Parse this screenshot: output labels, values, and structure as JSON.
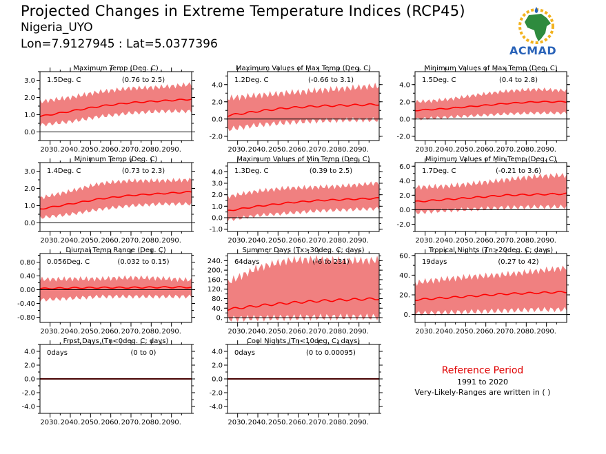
{
  "header": {
    "title": "Projected Changes in Extreme Temperature Indices (RCP45)",
    "region": "Nigeria_UYO",
    "coords": "Lon=7.9127945 : Lat=5.0377396"
  },
  "logo": {
    "text": "ACMAD"
  },
  "reference": {
    "title": "Reference Period",
    "years": "1991 to 2020",
    "note": "Very-Likely-Ranges are written in ( )"
  },
  "colors": {
    "band": "#f08080",
    "line": "#ff0000",
    "zero": "#000000"
  },
  "chart_data": [
    {
      "type": "area",
      "title": "Maximum Temp (Deg. C)",
      "value": "1.5Deg. C",
      "range": "(0.76 to 2.5)",
      "ylim": [
        -0.5,
        3.5
      ],
      "yticks": [
        "0.0",
        "1.0",
        "2.0",
        "3.0"
      ],
      "ytick_values": [
        0,
        1,
        2,
        3
      ],
      "xticks": [
        "2030.",
        "2040.",
        "2050.",
        "2060.",
        "2070.",
        "2080.",
        "2090."
      ],
      "x": [
        2025,
        2040,
        2055,
        2070,
        2085,
        2100
      ],
      "mean": [
        0.9,
        1.2,
        1.5,
        1.7,
        1.8,
        1.9
      ],
      "low": [
        0.4,
        0.6,
        0.9,
        1.1,
        1.2,
        1.2
      ],
      "high": [
        1.7,
        1.9,
        2.3,
        2.6,
        2.7,
        2.8
      ]
    },
    {
      "type": "area",
      "title": "Maximum Values of Max Temp (Deg. C)",
      "value": "1.2Deg. C",
      "range": "(-0.66 to 3.1)",
      "ylim": [
        -2.5,
        5.5
      ],
      "yticks": [
        "-2.0",
        "0.0",
        "2.0",
        "4.0"
      ],
      "ytick_values": [
        -2,
        0,
        2,
        4
      ],
      "xticks": [
        "2030.",
        "2040.",
        "2050.",
        "2060.",
        "2070.",
        "2080.",
        "2090."
      ],
      "x": [
        2025,
        2040,
        2055,
        2070,
        2085,
        2100
      ],
      "mean": [
        0.4,
        0.9,
        1.3,
        1.5,
        1.6,
        1.7
      ],
      "low": [
        -1.2,
        -0.7,
        -0.4,
        -0.2,
        -0.1,
        -0.1
      ],
      "high": [
        2.2,
        2.8,
        3.3,
        3.5,
        3.5,
        3.6
      ]
    },
    {
      "type": "area",
      "title": "Minimum Values of Max Temp (Deg. C)",
      "value": "1.5Deg. C",
      "range": "(0.4 to 2.8)",
      "ylim": [
        -2.5,
        5.5
      ],
      "yticks": [
        "-2.0",
        "0.0",
        "2.0",
        "4.0"
      ],
      "ytick_values": [
        -2,
        0,
        2,
        4
      ],
      "xticks": [
        "2030.",
        "2040.",
        "2050.",
        "2060.",
        "2070.",
        "2080.",
        "2090."
      ],
      "x": [
        2025,
        2040,
        2055,
        2070,
        2085,
        2100
      ],
      "mean": [
        1.0,
        1.2,
        1.5,
        1.8,
        2.0,
        2.0
      ],
      "low": [
        0.0,
        0.2,
        0.4,
        0.6,
        0.7,
        0.7
      ],
      "high": [
        2.1,
        2.4,
        2.8,
        3.1,
        3.3,
        3.3
      ]
    },
    {
      "type": "area",
      "title": "Minimum Temp (Deg. C)",
      "value": "1.4Deg. C",
      "range": "(0.73 to 2.3)",
      "ylim": [
        -0.5,
        3.5
      ],
      "yticks": [
        "0.0",
        "1.0",
        "2.0",
        "3.0"
      ],
      "ytick_values": [
        0,
        1,
        2,
        3
      ],
      "xticks": [
        "2030.",
        "2040.",
        "2050.",
        "2060.",
        "2070.",
        "2080.",
        "2090."
      ],
      "x": [
        2025,
        2040,
        2055,
        2070,
        2085,
        2100
      ],
      "mean": [
        0.8,
        1.1,
        1.4,
        1.6,
        1.7,
        1.8
      ],
      "low": [
        0.3,
        0.5,
        0.8,
        1.0,
        1.1,
        1.1
      ],
      "high": [
        1.5,
        1.8,
        2.2,
        2.4,
        2.5,
        2.6
      ]
    },
    {
      "type": "area",
      "title": "Maximum Values of Min Temp (Deg. C)",
      "value": "1.3Deg. C",
      "range": "(0.39 to 2.5)",
      "ylim": [
        -1.2,
        4.8
      ],
      "yticks": [
        "-1.0",
        "0.0",
        "1.0",
        "2.0",
        "3.0",
        "4.0"
      ],
      "ytick_values": [
        -1,
        0,
        1,
        2,
        3,
        4
      ],
      "xticks": [
        "2030.",
        "2040.",
        "2050.",
        "2060.",
        "2070.",
        "2080.",
        "2090."
      ],
      "x": [
        2025,
        2040,
        2055,
        2070,
        2085,
        2100
      ],
      "mean": [
        0.6,
        1.0,
        1.3,
        1.5,
        1.6,
        1.7
      ],
      "low": [
        -0.2,
        0.2,
        0.4,
        0.6,
        0.7,
        0.8
      ],
      "high": [
        1.7,
        2.2,
        2.6,
        2.8,
        2.9,
        3.0
      ]
    },
    {
      "type": "area",
      "title": "Minimum Values of Min Temp (Deg. C)",
      "value": "1.7Deg. C",
      "range": "(-0.21 to 3.6)",
      "ylim": [
        -3.0,
        6.5
      ],
      "yticks": [
        "-2.0",
        "0.0",
        "2.0",
        "4.0",
        "6.0"
      ],
      "ytick_values": [
        -2,
        0,
        2,
        4,
        6
      ],
      "xticks": [
        "2030.",
        "2040.",
        "2050.",
        "2060.",
        "2070.",
        "2080.",
        "2090."
      ],
      "x": [
        2025,
        2040,
        2055,
        2070,
        2085,
        2100
      ],
      "mean": [
        1.1,
        1.4,
        1.7,
        2.0,
        2.1,
        2.2
      ],
      "low": [
        -0.4,
        -0.1,
        0.1,
        0.3,
        0.4,
        0.4
      ],
      "high": [
        3.0,
        3.4,
        3.9,
        4.2,
        4.4,
        4.5
      ]
    },
    {
      "type": "area",
      "title": "Diurnal Temp Range (Deg. C)",
      "value": "0.056Deg. C",
      "range": "(0.032 to 0.15)",
      "ylim": [
        -0.95,
        1.05
      ],
      "yticks": [
        "-0.80",
        "-0.40",
        "0.00",
        "0.40",
        "0.80"
      ],
      "ytick_values": [
        -0.8,
        -0.4,
        0,
        0.4,
        0.8
      ],
      "xticks": [
        "2030.",
        "2040.",
        "2050.",
        "2060.",
        "2070.",
        "2080.",
        "2090."
      ],
      "x": [
        2025,
        2040,
        2055,
        2070,
        2085,
        2100
      ],
      "mean": [
        0.03,
        0.05,
        0.06,
        0.06,
        0.07,
        0.07
      ],
      "low": [
        -0.3,
        -0.25,
        -0.2,
        -0.2,
        -0.2,
        -0.2
      ],
      "high": [
        0.35,
        0.35,
        0.3,
        0.3,
        0.3,
        0.3
      ]
    },
    {
      "type": "area",
      "title": "Summer Days (Tx>30deg. C; days)",
      "value": "64days",
      "range": "(-6 to 231)",
      "ylim": [
        -20,
        270
      ],
      "yticks": [
        "0.",
        "40.",
        "80.",
        "120.",
        "160.",
        "200.",
        "240."
      ],
      "ytick_values": [
        0,
        40,
        80,
        120,
        160,
        200,
        240
      ],
      "xticks": [
        "2030.",
        "2040.",
        "2050.",
        "2060.",
        "2070.",
        "2080.",
        "2090."
      ],
      "x": [
        2025,
        2040,
        2055,
        2070,
        2085,
        2100
      ],
      "mean": [
        35,
        50,
        62,
        70,
        76,
        80
      ],
      "low": [
        -5,
        -2,
        0,
        2,
        3,
        3
      ],
      "high": [
        150,
        200,
        230,
        245,
        250,
        252
      ]
    },
    {
      "type": "area",
      "title": "Tropical Nights (Tn>20deg. C; days)",
      "value": "19days",
      "range": "(0.27 to 42)",
      "ylim": [
        -8,
        62
      ],
      "yticks": [
        "0.",
        "20.",
        "40.",
        "60."
      ],
      "ytick_values": [
        0,
        20,
        40,
        60
      ],
      "xticks": [
        "2030.",
        "2040.",
        "2050.",
        "2060.",
        "2070.",
        "2080.",
        "2090."
      ],
      "x": [
        2025,
        2040,
        2055,
        2070,
        2085,
        2100
      ],
      "mean": [
        15,
        17,
        19,
        21,
        22,
        23
      ],
      "low": [
        1,
        2,
        3,
        4,
        5,
        5
      ],
      "high": [
        30,
        35,
        40,
        43,
        45,
        46
      ]
    },
    {
      "type": "area",
      "title": "Frost Days (Tn<0deg. C; days)",
      "value": "0days",
      "range": "(0 to 0)",
      "ylim": [
        -5,
        5
      ],
      "yticks": [
        "-4.0",
        "-2.0",
        "0.0",
        "2.0",
        "4.0"
      ],
      "ytick_values": [
        -4,
        -2,
        0,
        2,
        4
      ],
      "xticks": [
        "2030.",
        "2040.",
        "2050.",
        "2060.",
        "2070.",
        "2080.",
        "2090."
      ],
      "x": [
        2025,
        2100
      ],
      "mean": [
        0,
        0
      ],
      "low": [
        0,
        0
      ],
      "high": [
        0,
        0
      ]
    },
    {
      "type": "area",
      "title": "Cool Nights (Tn<10deg. C; days)",
      "value": "0days",
      "range": "(0 to 0.00095)",
      "ylim": [
        -5,
        5
      ],
      "yticks": [
        "-4.0",
        "-2.0",
        "0.0",
        "2.0",
        "4.0"
      ],
      "ytick_values": [
        -4,
        -2,
        0,
        2,
        4
      ],
      "xticks": [
        "2030.",
        "2040.",
        "2050.",
        "2060.",
        "2070.",
        "2080.",
        "2090."
      ],
      "x": [
        2025,
        2100
      ],
      "mean": [
        0,
        0
      ],
      "low": [
        0,
        0
      ],
      "high": [
        0,
        0
      ]
    }
  ]
}
